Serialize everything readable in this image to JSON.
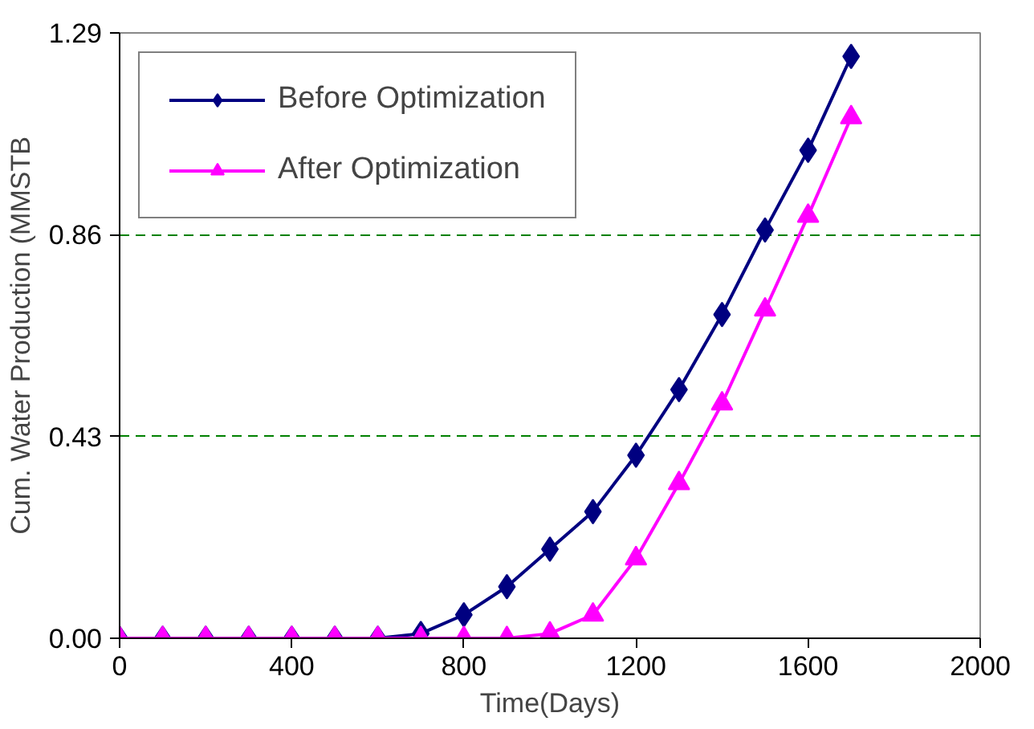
{
  "chart_data": {
    "type": "line",
    "xlabel": "Time(Days)",
    "ylabel": "Cum. Water Production (MMSTB",
    "x": [
      0,
      100,
      200,
      300,
      400,
      500,
      600,
      700,
      800,
      900,
      1000,
      1100,
      1200,
      1300,
      1400,
      1500,
      1600,
      1700
    ],
    "series": [
      {
        "name": "Before Optimization",
        "color": "#000080",
        "marker": "diamond",
        "values": [
          0,
          0,
          0,
          0,
          0,
          0,
          0,
          0.01,
          0.05,
          0.11,
          0.19,
          0.27,
          0.39,
          0.53,
          0.69,
          0.87,
          1.04,
          1.24
        ]
      },
      {
        "name": "After Optimization",
        "color": "#ff00ff",
        "marker": "triangle",
        "values": [
          0,
          0,
          0,
          0,
          0,
          0,
          0,
          0,
          0,
          0,
          0.01,
          0.05,
          0.17,
          0.33,
          0.5,
          0.7,
          0.9,
          1.11
        ]
      }
    ],
    "xlim": [
      0,
      2000
    ],
    "xticks": [
      0,
      400,
      800,
      1200,
      1600,
      2000
    ],
    "ylim": [
      0,
      1.29
    ],
    "yticks": [
      {
        "value": 0,
        "label": "0.00"
      },
      {
        "value": 0.43,
        "label": "0.43"
      },
      {
        "value": 0.86,
        "label": "0.86"
      },
      {
        "value": 1.29,
        "label": "1.29"
      }
    ],
    "grid": "y",
    "legend": "top left",
    "line_style": "solid"
  }
}
